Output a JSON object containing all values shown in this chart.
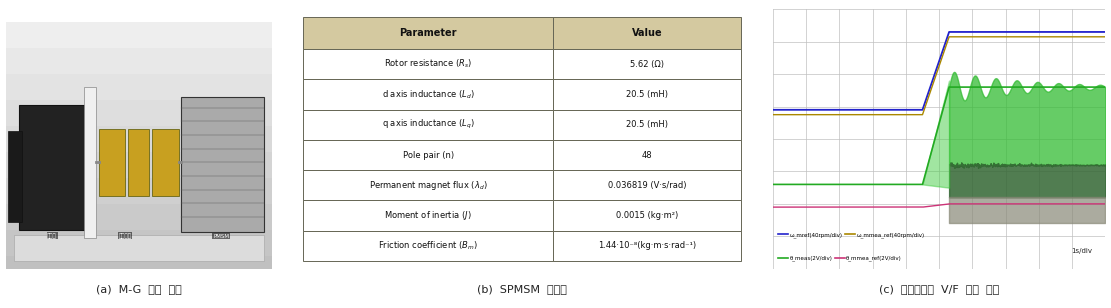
{
  "caption_a": "(a)  M-G  세트  구성",
  "caption_b": "(b)  SPMSM  제정수",
  "caption_c": "(c)  동기전동기  V/F  구동  결과",
  "table_header": [
    "Parameter",
    "Value"
  ],
  "table_rows": [
    [
      "Rotor resistance ($R_s$)",
      "5.62 (Ω)"
    ],
    [
      "d axis inductance ($L_d$)",
      "20.5 (mH)"
    ],
    [
      "q axis inductance ($L_q$)",
      "20.5 (mH)"
    ],
    [
      "Pole pair (n)",
      "48"
    ],
    [
      "Permanent magnet flux ($\\lambda_d$)",
      "0.036819 (V·s/rad)"
    ],
    [
      "Moment of inertia ($J$)",
      "0.0015 (kg·m²)"
    ],
    [
      "Friction coefficient ($B_m$)",
      "1.44·10⁻⁸(kg·m·s·rad⁻¹)"
    ]
  ],
  "header_bg": "#d4c9a0",
  "border_color": "#666655",
  "fig_bg": "#ffffff",
  "plot_grid_color": "#c0c0c0",
  "plot_bg": "#cccccc",
  "legend_entries": [
    {
      "label": "ω_mref(40rpm/div)",
      "color": "#2222cc"
    },
    {
      "label": "ω_mmea_ref(40rpm/div)",
      "color": "#aa8800"
    },
    {
      "label": "θ_meas(2V/div)",
      "color": "#22aa22"
    },
    {
      "label": "θ_mmea_ref(2V/div)",
      "color": "#cc3377"
    }
  ],
  "timescale": "1s/div"
}
